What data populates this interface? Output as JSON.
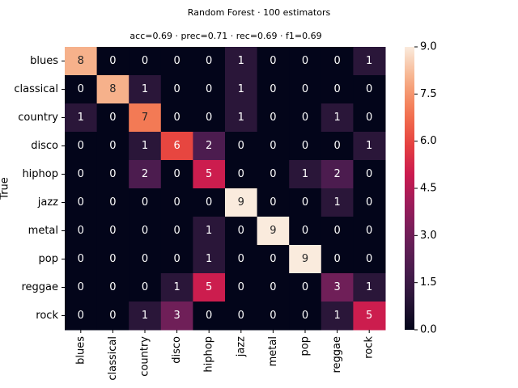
{
  "chart_data": {
    "type": "heatmap",
    "title": "Random Forest · 100 estimators",
    "subtitle": "acc=0.69 · prec=0.71 · rec=0.69 · f1=0.69",
    "ylabel": "True",
    "x_categories": [
      "blues",
      "classical",
      "country",
      "disco",
      "hiphop",
      "jazz",
      "metal",
      "pop",
      "reggae",
      "rock"
    ],
    "y_categories": [
      "blues",
      "classical",
      "country",
      "disco",
      "hiphop",
      "jazz",
      "metal",
      "pop",
      "reggae",
      "rock"
    ],
    "z": [
      [
        8,
        0,
        0,
        0,
        0,
        1,
        0,
        0,
        0,
        1
      ],
      [
        0,
        8,
        1,
        0,
        0,
        1,
        0,
        0,
        0,
        0
      ],
      [
        1,
        0,
        7,
        0,
        0,
        1,
        0,
        0,
        1,
        0
      ],
      [
        0,
        0,
        1,
        6,
        2,
        0,
        0,
        0,
        0,
        1
      ],
      [
        0,
        0,
        2,
        0,
        5,
        0,
        0,
        1,
        2,
        0
      ],
      [
        0,
        0,
        0,
        0,
        0,
        9,
        0,
        0,
        1,
        0
      ],
      [
        0,
        0,
        0,
        0,
        1,
        0,
        9,
        0,
        0,
        0
      ],
      [
        0,
        0,
        0,
        0,
        1,
        0,
        0,
        9,
        0,
        0
      ],
      [
        0,
        0,
        0,
        1,
        5,
        0,
        0,
        0,
        3,
        1
      ],
      [
        0,
        0,
        1,
        3,
        0,
        0,
        0,
        0,
        1,
        5
      ]
    ],
    "zlim": [
      0,
      9
    ],
    "zticks": [
      {
        "value": 0,
        "label": "0.0"
      },
      {
        "value": 1.5,
        "label": "1.5"
      },
      {
        "value": 3,
        "label": "3.0"
      },
      {
        "value": 4.5,
        "label": "4.5"
      },
      {
        "value": 6,
        "label": "6.0"
      },
      {
        "value": 7.5,
        "label": "7.5"
      },
      {
        "value": 9,
        "label": "9.0"
      }
    ]
  }
}
